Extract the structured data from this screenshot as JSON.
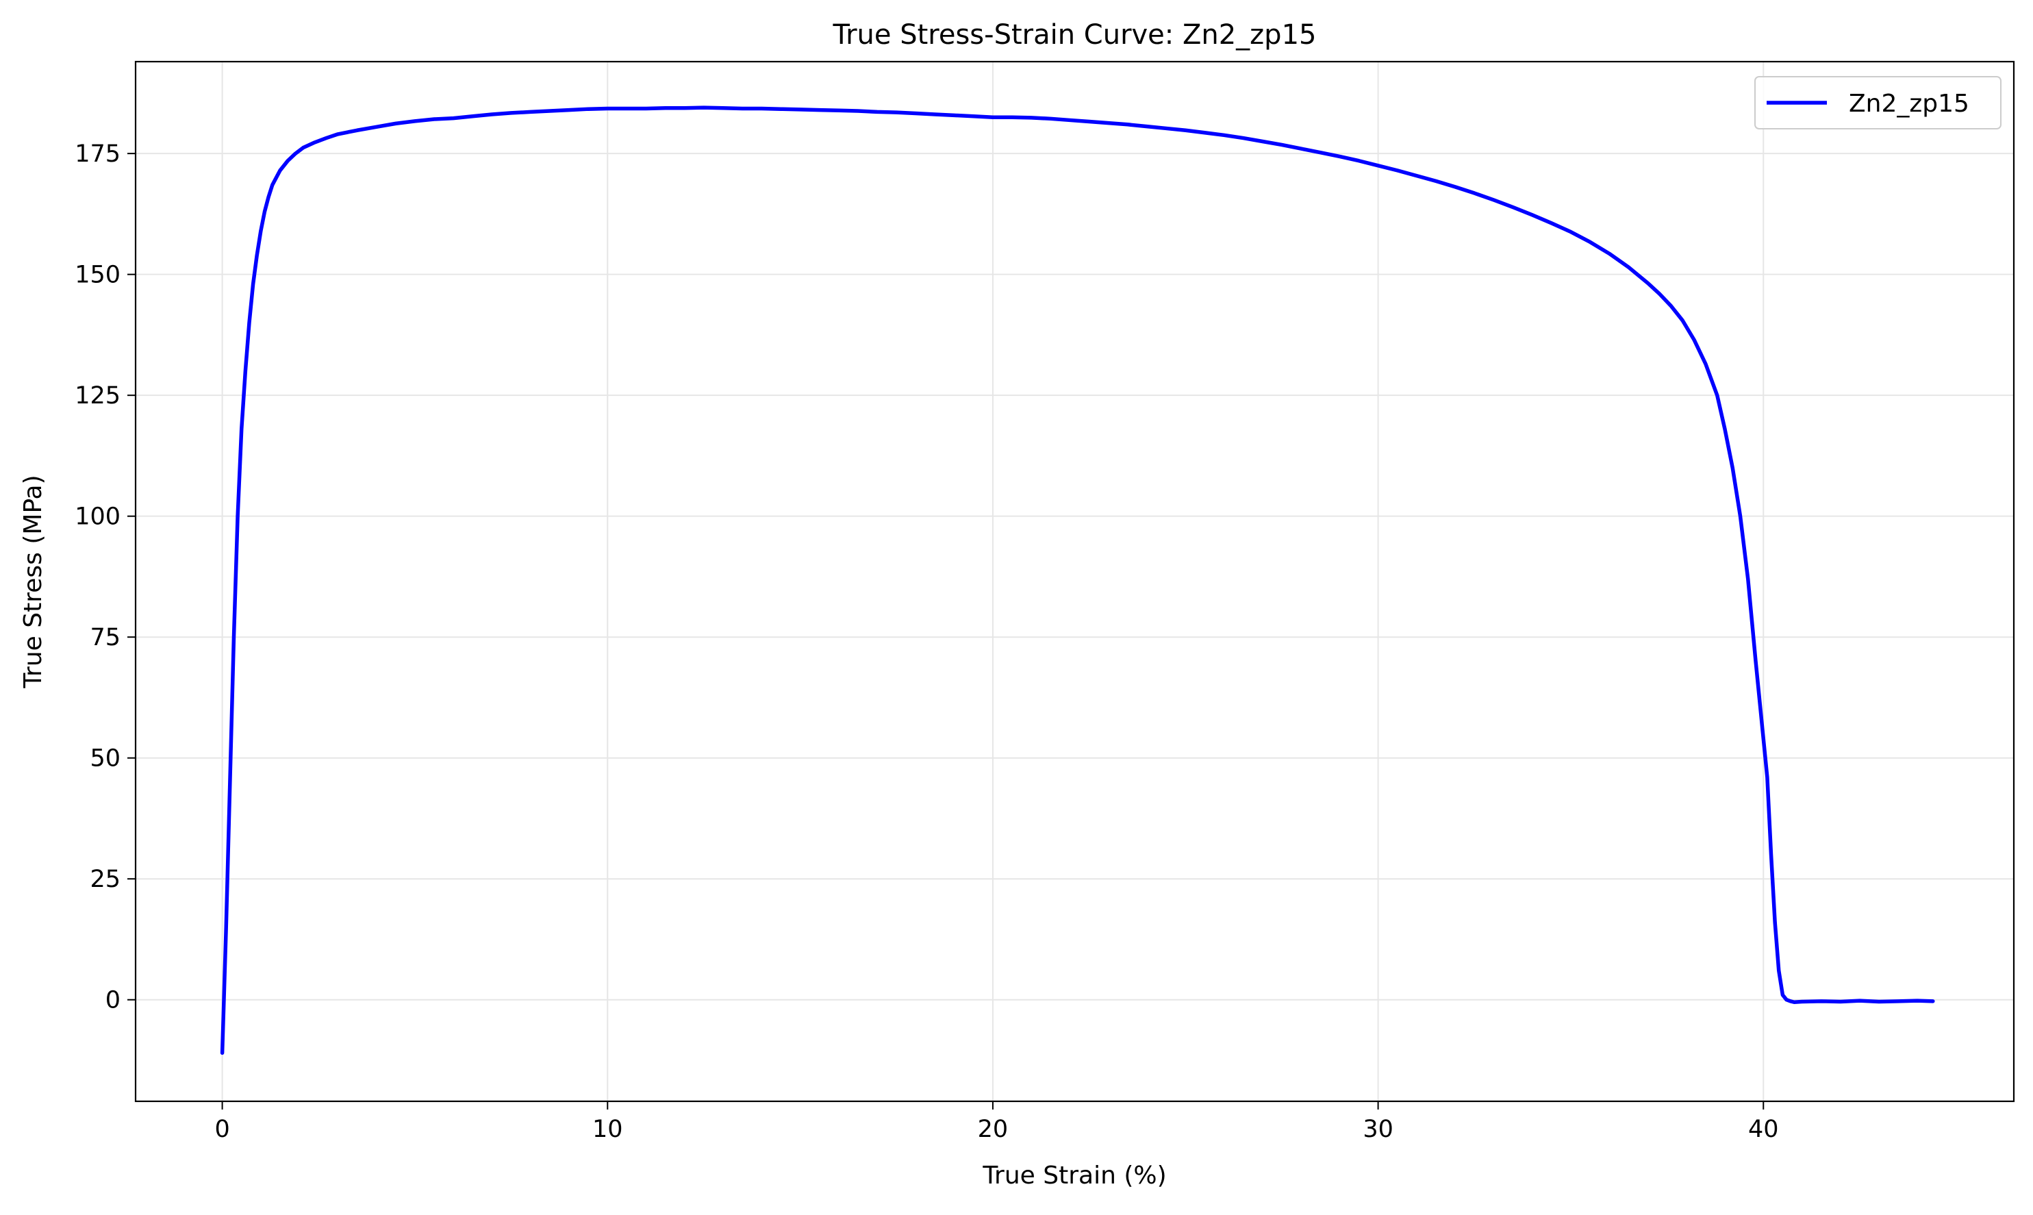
{
  "chart_data": {
    "type": "line",
    "title": "True Stress-Strain Curve: Zn2_zp15",
    "xlabel": "True Strain (%)",
    "ylabel": "True Stress (MPa)",
    "xlim": [
      -2.25,
      46.5
    ],
    "ylim": [
      -21,
      194
    ],
    "xticks": [
      0,
      10,
      20,
      30,
      40
    ],
    "yticks": [
      0,
      25,
      50,
      75,
      100,
      125,
      150,
      175
    ],
    "grid": true,
    "legend_position": "top-right",
    "colors": {
      "series": "#0000ff",
      "grid": "#e6e6e6",
      "axes": "#000000"
    },
    "series": [
      {
        "name": "Zn2_zp15",
        "x": [
          0,
          0.1,
          0.2,
          0.3,
          0.4,
          0.5,
          0.6,
          0.7,
          0.8,
          0.9,
          1.0,
          1.1,
          1.2,
          1.3,
          1.5,
          1.7,
          1.9,
          2.1,
          2.4,
          2.7,
          3.0,
          3.5,
          4.0,
          4.5,
          5.0,
          5.5,
          6.0,
          6.5,
          7.0,
          7.5,
          8.0,
          8.5,
          9.0,
          9.5,
          10.0,
          10.5,
          11.0,
          11.5,
          12.0,
          12.5,
          13.0,
          13.5,
          14.0,
          14.5,
          15.0,
          15.5,
          16.0,
          16.5,
          17.0,
          17.5,
          18.0,
          18.5,
          19.0,
          19.5,
          20.0,
          20.5,
          21.0,
          21.5,
          22.0,
          22.5,
          23.0,
          23.5,
          24.0,
          24.5,
          25.0,
          25.5,
          26.0,
          26.5,
          27.0,
          27.5,
          28.0,
          28.5,
          29.0,
          29.5,
          30.0,
          30.5,
          31.0,
          31.5,
          32.0,
          32.5,
          33.0,
          33.5,
          34.0,
          34.5,
          35.0,
          35.5,
          36.0,
          36.5,
          37.0,
          37.3,
          37.6,
          37.9,
          38.2,
          38.5,
          38.8,
          39.0,
          39.2,
          39.4,
          39.6,
          39.8,
          39.9,
          40.0,
          40.1,
          40.2,
          40.3,
          40.4,
          40.5,
          40.6,
          40.7,
          40.8,
          41.0,
          41.5,
          42.0,
          42.5,
          43.0,
          43.5,
          44.0,
          44.4
        ],
        "y": [
          -11,
          15,
          45,
          75,
          100,
          118,
          130,
          140,
          148,
          154,
          159,
          163,
          166,
          168.5,
          171.5,
          173.5,
          175,
          176.2,
          177.3,
          178.2,
          179,
          179.8,
          180.5,
          181.2,
          181.7,
          182.1,
          182.3,
          182.7,
          183.1,
          183.4,
          183.6,
          183.8,
          184.0,
          184.2,
          184.3,
          184.3,
          184.3,
          184.4,
          184.4,
          184.5,
          184.4,
          184.3,
          184.3,
          184.2,
          184.1,
          184.0,
          183.9,
          183.8,
          183.6,
          183.5,
          183.3,
          183.1,
          182.9,
          182.7,
          182.5,
          182.5,
          182.4,
          182.2,
          181.9,
          181.6,
          181.3,
          181.0,
          180.6,
          180.2,
          179.8,
          179.3,
          178.8,
          178.2,
          177.5,
          176.8,
          176.0,
          175.2,
          174.4,
          173.5,
          172.5,
          171.5,
          170.4,
          169.3,
          168.1,
          166.8,
          165.4,
          163.9,
          162.3,
          160.6,
          158.8,
          156.7,
          154.3,
          151.5,
          148.2,
          146,
          143.5,
          140.5,
          136.5,
          131.5,
          125,
          118,
          110,
          100,
          87,
          70,
          62,
          54,
          46,
          30,
          16,
          6,
          1,
          0,
          -0.3,
          -0.5,
          -0.4,
          -0.3,
          -0.4,
          -0.2,
          -0.4,
          -0.3,
          -0.2,
          -0.3
        ]
      }
    ]
  }
}
